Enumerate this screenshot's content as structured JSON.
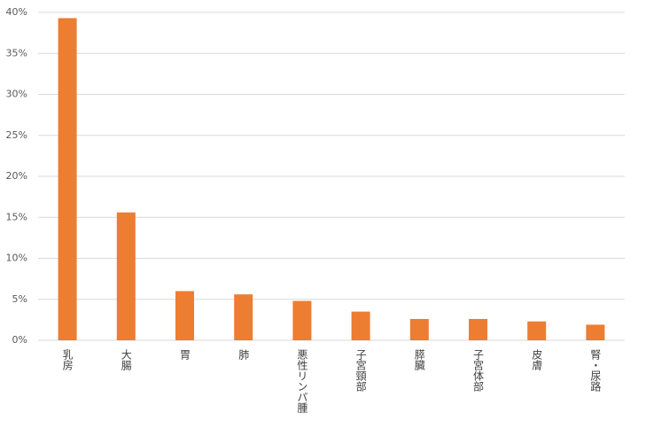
{
  "chart_data": {
    "type": "bar",
    "categories": [
      "乳房",
      "大腸",
      "胃",
      "肺",
      "悪性リンパ腫",
      "子宮頸部",
      "膵臓",
      "子宮体部",
      "皮膚",
      "腎・尿路"
    ],
    "values": [
      39.3,
      15.6,
      6.0,
      5.6,
      4.8,
      3.5,
      2.6,
      2.6,
      2.3,
      1.9
    ],
    "color": "#ed7d31",
    "ylim": [
      0,
      40
    ],
    "yticks": [
      {
        "value": 0,
        "label": "0%"
      },
      {
        "value": 5,
        "label": "5%"
      },
      {
        "value": 10,
        "label": "10%"
      },
      {
        "value": 15,
        "label": "15%"
      },
      {
        "value": 20,
        "label": "20%"
      },
      {
        "value": 25,
        "label": "25%"
      },
      {
        "value": 30,
        "label": "30%"
      },
      {
        "value": 35,
        "label": "35%"
      },
      {
        "value": 40,
        "label": "40%"
      }
    ],
    "grid": true
  }
}
